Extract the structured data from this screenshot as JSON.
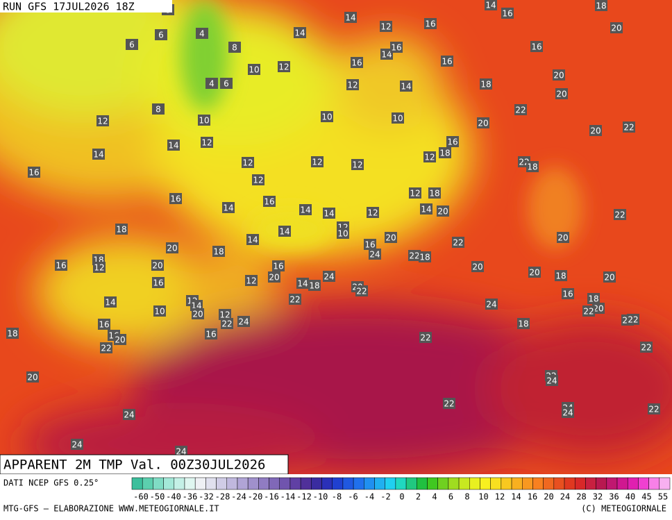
{
  "header": {
    "run": "RUN GFS 17JUL2026 18Z"
  },
  "title": "APPARENT 2M TMP Val. 00Z30JUL2026",
  "footer": {
    "source": "DATI NCEP GFS 0.25°",
    "credit": "MTG-GFS — ELABORAZIONE WWW.METEOGIORNALE.IT",
    "copyright": "(C) METEOGIORNALE"
  },
  "legend": {
    "colors": [
      "#3cbf9c",
      "#5ccfae",
      "#80dcc4",
      "#a4e8d8",
      "#c4f0e6",
      "#dff6f0",
      "#eef0f4",
      "#e0e0ee",
      "#d0cce6",
      "#c0b8de",
      "#b0a4d6",
      "#a090cc",
      "#907cc2",
      "#8068b8",
      "#7054ae",
      "#6040a4",
      "#50309a",
      "#3a2ca0",
      "#2a30b8",
      "#2040d0",
      "#2058e0",
      "#2070ec",
      "#2090f0",
      "#20b0f0",
      "#20d0f0",
      "#20d8c0",
      "#20c880",
      "#20c040",
      "#40c820",
      "#70d020",
      "#a0dc20",
      "#c8e820",
      "#e8f020",
      "#f8f020",
      "#f8e020",
      "#f8c820",
      "#f8b020",
      "#f89820",
      "#f88020",
      "#f06820",
      "#e85020",
      "#e03820",
      "#d82828",
      "#c82040",
      "#b81850",
      "#c01870",
      "#d01890",
      "#e020b0",
      "#f040d0",
      "#f880e8",
      "#f8b0f0"
    ],
    "labels": [
      -60,
      -50,
      -40,
      -36,
      -32,
      -28,
      -24,
      -20,
      -16,
      -14,
      -12,
      -10,
      -8,
      -6,
      -4,
      -2,
      0,
      2,
      4,
      6,
      8,
      10,
      12,
      14,
      16,
      20,
      24,
      28,
      32,
      36,
      40,
      45,
      55
    ]
  },
  "map_labels": [
    8,
    14,
    14,
    16,
    18,
    20,
    4,
    6,
    6,
    8,
    14,
    12,
    16,
    14,
    16,
    16,
    10,
    12,
    16,
    16,
    4,
    6,
    12,
    14,
    18,
    20,
    8,
    10,
    12,
    10,
    10,
    22,
    20,
    20,
    20,
    22,
    14,
    12,
    14,
    16,
    18,
    12,
    12,
    12,
    12,
    22,
    18,
    16,
    12,
    12,
    18,
    16,
    16,
    14,
    14,
    14,
    12,
    14,
    20,
    22,
    18,
    14,
    12,
    10,
    18,
    14,
    20,
    20,
    16,
    22,
    20,
    24,
    22,
    18,
    16,
    18,
    12,
    20,
    16,
    20,
    20,
    12,
    14,
    18,
    24,
    20,
    18,
    20,
    16,
    20,
    22,
    14,
    12,
    14,
    22,
    16,
    18,
    20,
    22,
    24,
    10,
    20,
    12,
    22,
    24,
    16,
    22,
    22,
    18,
    18,
    16,
    20,
    16,
    22,
    22,
    22,
    20,
    22,
    24,
    22,
    24,
    24,
    24,
    22,
    24,
    24
  ]
}
